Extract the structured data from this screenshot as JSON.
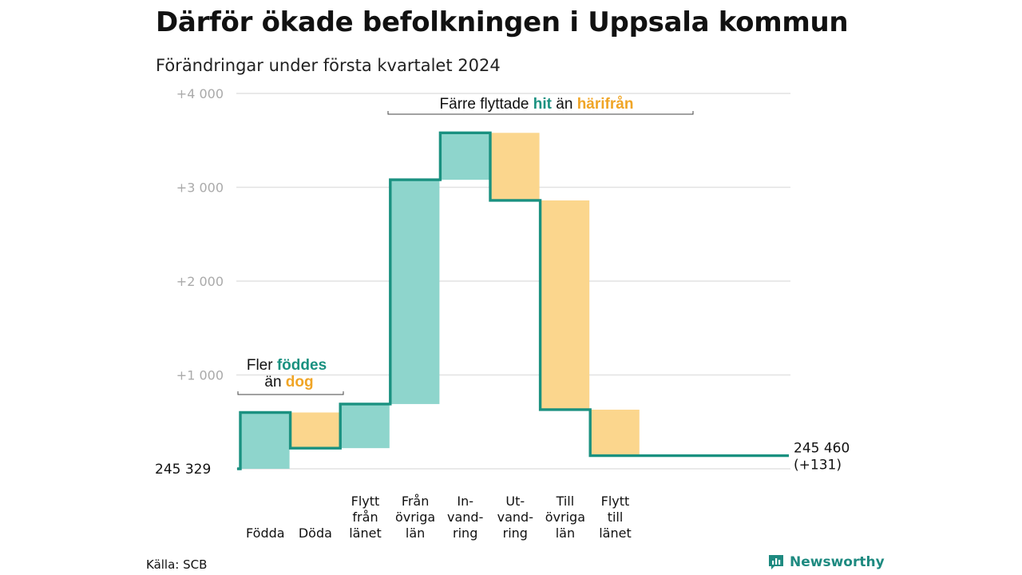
{
  "title": "Därför ökade befolkningen i Uppsala kommun",
  "subtitle": "Förändringar under första kvartalet 2024",
  "source": "Källa: SCB",
  "brand": {
    "name": "Newsworthy",
    "icon": "bar-chart-speech-icon"
  },
  "colors": {
    "increase_fill": "#8ed5cc",
    "decrease_fill": "#fbd68d",
    "line": "#1a9180",
    "accent_teal": "#1a9180",
    "accent_orange": "#f0a526",
    "grid": "#e2e2e2",
    "tick": "#aaaaaa"
  },
  "chart_data": {
    "type": "waterfall",
    "start_value": 245329,
    "start_label": "245 329",
    "end_value": 245460,
    "end_label": "245 460",
    "end_change_label": "(+131)",
    "ylim": [
      -50,
      4000
    ],
    "y_ticks": [
      {
        "value": 1000,
        "label": "+1 000"
      },
      {
        "value": 2000,
        "label": "+2 000"
      },
      {
        "value": 3000,
        "label": "+3 000"
      },
      {
        "value": 4000,
        "label": "+4 000"
      }
    ],
    "grid": true,
    "steps": [
      {
        "label_lines": [
          "Födda"
        ],
        "change": 600,
        "kind": "increase"
      },
      {
        "label_lines": [
          "Döda"
        ],
        "change": -380,
        "kind": "decrease"
      },
      {
        "label_lines": [
          "Flytt",
          "från",
          "länet"
        ],
        "change": 470,
        "kind": "increase"
      },
      {
        "label_lines": [
          "Från",
          "övriga",
          "län"
        ],
        "change": 2390,
        "kind": "increase"
      },
      {
        "label_lines": [
          "In-",
          "vand-",
          "ring"
        ],
        "change": 500,
        "kind": "increase"
      },
      {
        "label_lines": [
          "Ut-",
          "vand-",
          "ring"
        ],
        "change": -720,
        "kind": "decrease"
      },
      {
        "label_lines": [
          "Till",
          "övriga",
          "län"
        ],
        "change": -2230,
        "kind": "decrease"
      },
      {
        "label_lines": [
          "Flytt",
          "till",
          "länet"
        ],
        "change": -490,
        "kind": "decrease"
      }
    ],
    "annotations": [
      {
        "id": "births",
        "parts": [
          {
            "text": "Fler ",
            "color": "dark"
          },
          {
            "text": "föddes",
            "color": "teal"
          }
        ],
        "parts2": [
          {
            "text": "än ",
            "color": "dark"
          },
          {
            "text": "dog",
            "color": "orange"
          }
        ]
      },
      {
        "id": "moves",
        "parts": [
          {
            "text": "Färre flyttade ",
            "color": "dark"
          },
          {
            "text": "hit",
            "color": "teal"
          },
          {
            "text": " än ",
            "color": "dark"
          },
          {
            "text": "härifrån",
            "color": "orange"
          }
        ]
      }
    ]
  }
}
